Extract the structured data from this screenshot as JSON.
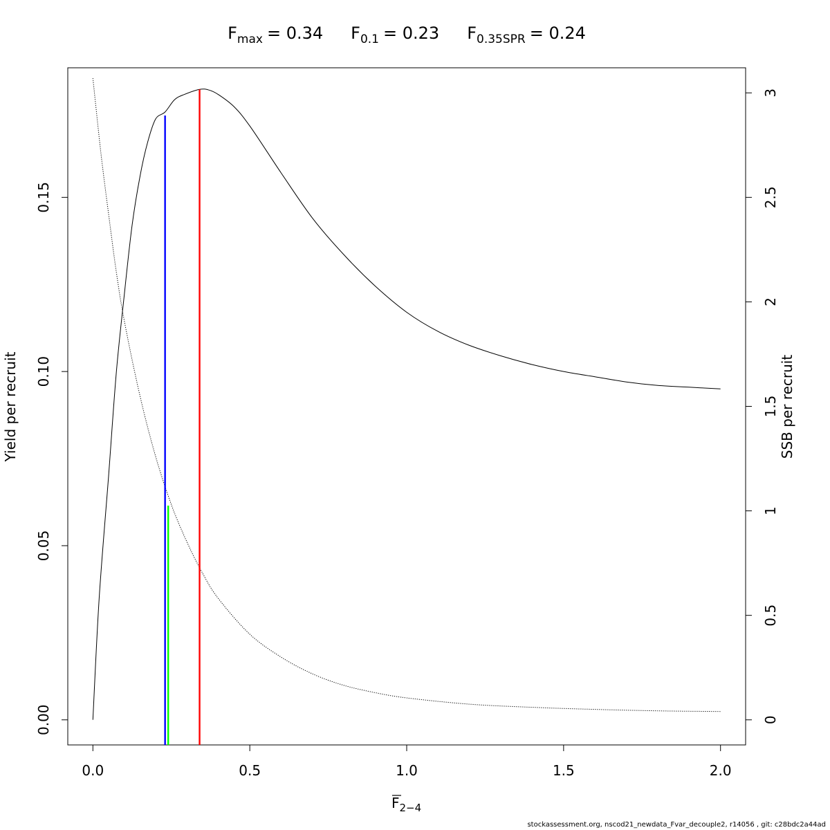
{
  "chart_data": {
    "type": "line",
    "title": {
      "fmax": {
        "base": "F",
        "sub": "max",
        "value": "= 0.34"
      },
      "f01": {
        "base": "F",
        "sub": "0.1",
        "value": "= 0.23"
      },
      "fspr": {
        "base": "F",
        "sub": "0.35SPR",
        "value": "= 0.24"
      }
    },
    "xlabel": {
      "base": "F",
      "sub": "2−4"
    },
    "ylabel_left": "Yield per recruit",
    "ylabel_right": "SSB per recruit",
    "xlim": [
      -0.08,
      2.08
    ],
    "ylim_left": [
      -0.0072,
      0.1872
    ],
    "ylim_right": [
      -0.12,
      3.12
    ],
    "x_ticks": [
      "0.0",
      "0.5",
      "1.0",
      "1.5",
      "2.0"
    ],
    "x_tick_values": [
      0,
      0.5,
      1.0,
      1.5,
      2.0
    ],
    "y_left_ticks": [
      "0.00",
      "0.05",
      "0.10",
      "0.15"
    ],
    "y_left_tick_values": [
      0,
      0.05,
      0.1,
      0.15
    ],
    "y_right_ticks": [
      "0",
      "0.5",
      "1",
      "1.5",
      "2",
      "2.5",
      "3"
    ],
    "y_right_tick_values": [
      0,
      0.5,
      1,
      1.5,
      2,
      2.5,
      3
    ],
    "series": [
      {
        "name": "Yield per recruit",
        "axis": "left",
        "style": "solid",
        "color": "#000000",
        "x": [
          0,
          0.02,
          0.05,
          0.075,
          0.1,
          0.125,
          0.15,
          0.175,
          0.2,
          0.23,
          0.26,
          0.29,
          0.34,
          0.37,
          0.4,
          0.45,
          0.5,
          0.6,
          0.7,
          0.8,
          0.9,
          1.0,
          1.1,
          1.2,
          1.3,
          1.4,
          1.5,
          1.6,
          1.7,
          1.8,
          1.9,
          2.0
        ],
        "y": [
          0,
          0.035,
          0.07,
          0.1,
          0.122,
          0.142,
          0.156,
          0.166,
          0.1725,
          0.1745,
          0.178,
          0.1795,
          0.181,
          0.1808,
          0.1795,
          0.176,
          0.1705,
          0.157,
          0.144,
          0.1335,
          0.1245,
          0.117,
          0.1115,
          0.1075,
          0.1045,
          0.102,
          0.1,
          0.0985,
          0.097,
          0.096,
          0.0955,
          0.095
        ]
      },
      {
        "name": "SSB per recruit",
        "axis": "right",
        "style": "dotted",
        "color": "#000000",
        "x": [
          0,
          0.025,
          0.05,
          0.075,
          0.1,
          0.15,
          0.2,
          0.25,
          0.3,
          0.35,
          0.4,
          0.5,
          0.6,
          0.7,
          0.8,
          0.9,
          1.0,
          1.2,
          1.4,
          1.6,
          1.8,
          2.0
        ],
        "y": [
          3.07,
          2.72,
          2.42,
          2.14,
          1.91,
          1.55,
          1.26,
          1.03,
          0.85,
          0.7,
          0.58,
          0.41,
          0.3,
          0.22,
          0.165,
          0.13,
          0.105,
          0.075,
          0.06,
          0.05,
          0.043,
          0.04
        ]
      }
    ],
    "reference_lines": [
      {
        "name": "F0.1",
        "x": 0.23,
        "y_left": 0.1735,
        "color": "#0000ff"
      },
      {
        "name": "F0.35SPR",
        "x": 0.24,
        "y_left": 0.0615,
        "color": "#00ff00"
      },
      {
        "name": "Fmax",
        "x": 0.34,
        "y_left": 0.181,
        "color": "#ff0000"
      }
    ],
    "grid": false,
    "legend": "none"
  },
  "footer": "stockassessment.org, nscod21_newdata_Fvar_decouple2, r14056 , git: c28bdc2a44ad"
}
